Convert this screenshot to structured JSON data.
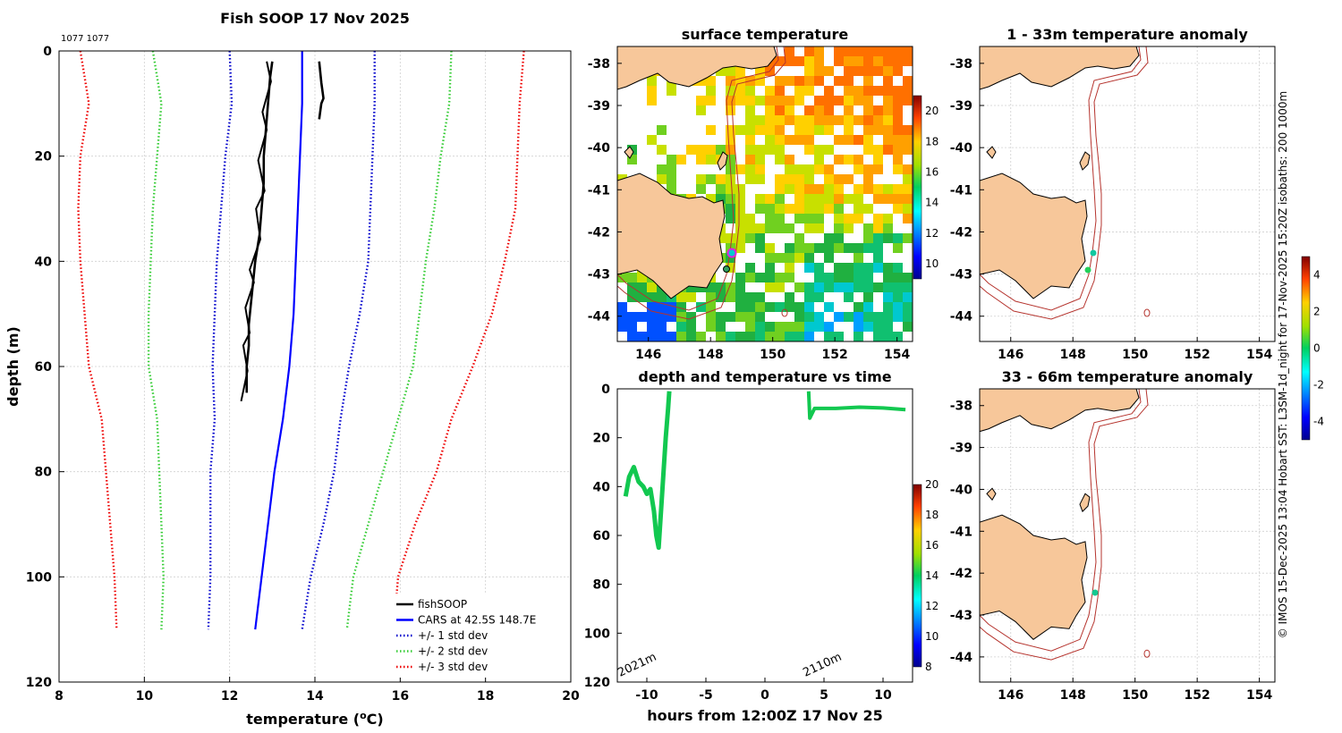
{
  "figure": {
    "side_text": "© IMOS 15-Dec-2025 13:04 Hobart SST: L3SM-1d_night for 17-Nov-2025 15:20Z isobaths: 200  1000m",
    "colors": {
      "fish": "#000000",
      "cars": "#0000ff",
      "std1": "#0000cc",
      "std2": "#33cc33",
      "std3": "#ee0000",
      "land": "#f7c79a",
      "isobath": "#b5332d",
      "track": "#12c850"
    }
  },
  "chart_data": [
    {
      "id": "profile",
      "type": "line",
      "title": "Fish SOOP 17 Nov 2025",
      "corner_note": "1077 1077",
      "xlabel": "temperature (°C)",
      "xlabel_main": "temperature (",
      "xlabel_sup": "o",
      "xlabel_tail": "C)",
      "ylabel": "depth (m)",
      "xlim": [
        8,
        20
      ],
      "ylim": [
        0,
        120
      ],
      "xticks": [
        "8",
        "10",
        "12",
        "14",
        "16",
        "18",
        "20"
      ],
      "yticks": [
        "0",
        "20",
        "40",
        "60",
        "80",
        "100",
        "120"
      ],
      "depth": [
        0,
        10,
        20,
        30,
        40,
        50,
        60,
        70,
        80,
        90,
        100,
        110
      ],
      "series": [
        {
          "name": "CARS at 42.5S 148.7E",
          "style": "solid",
          "color": "#0000ff",
          "values": [
            13.7,
            13.7,
            13.65,
            13.6,
            13.55,
            13.5,
            13.4,
            13.25,
            13.05,
            12.9,
            12.75,
            12.6
          ]
        },
        {
          "name": "+/- 1 std dev",
          "style": "dot",
          "color": "#0000cc",
          "values": [
            12.0,
            12.05,
            11.9,
            11.8,
            11.7,
            11.65,
            11.6,
            11.65,
            11.55,
            11.55,
            11.55,
            11.5
          ]
        },
        {
          "name": "+/- 1 std dev upper",
          "style": "dot",
          "color": "#0000cc",
          "legend": false,
          "values": [
            15.4,
            15.4,
            15.35,
            15.3,
            15.25,
            15.05,
            14.8,
            14.6,
            14.45,
            14.2,
            13.9,
            13.7
          ]
        },
        {
          "name": "+/- 2 std dev",
          "style": "dot",
          "color": "#33cc33",
          "values": [
            10.2,
            10.4,
            10.3,
            10.2,
            10.15,
            10.1,
            10.1,
            10.3,
            10.35,
            10.4,
            10.45,
            10.4
          ]
        },
        {
          "name": "+/- 2 std dev upper",
          "style": "dot",
          "color": "#33cc33",
          "legend": false,
          "values": [
            17.2,
            17.15,
            16.95,
            16.8,
            16.6,
            16.45,
            16.3,
            15.95,
            15.6,
            15.25,
            14.9,
            14.75
          ]
        },
        {
          "name": "+/- 3 std dev",
          "style": "dot",
          "color": "#ee0000",
          "values": [
            8.5,
            8.7,
            8.5,
            8.45,
            8.5,
            8.6,
            8.7,
            9.0,
            9.1,
            9.2,
            9.3,
            9.35
          ]
        },
        {
          "name": "+/- 3 std dev upper",
          "style": "dot",
          "color": "#ee0000",
          "legend": false,
          "values": [
            18.9,
            18.8,
            18.75,
            18.7,
            18.45,
            18.15,
            17.7,
            17.2,
            16.85,
            16.35,
            15.95,
            15.85
          ]
        }
      ],
      "fish": {
        "name": "fishSOOP",
        "color": "#000000",
        "depth": [
          2,
          5,
          10,
          15,
          20,
          25,
          30,
          35,
          40,
          44,
          48,
          52,
          56,
          60,
          65
        ],
        "values": [
          13.0,
          12.95,
          12.9,
          12.85,
          12.8,
          12.8,
          12.75,
          12.7,
          12.6,
          12.55,
          12.5,
          12.45,
          12.45,
          12.4,
          12.4
        ],
        "short_depth": [
          2,
          6,
          9,
          10,
          13
        ],
        "short_values": [
          14.1,
          14.15,
          14.2,
          14.15,
          14.1
        ]
      },
      "legend": [
        "fishSOOP",
        "CARS at 42.5S 148.7E",
        "+/- 1 std dev",
        "+/- 2 std dev",
        "+/- 3 std dev"
      ]
    },
    {
      "id": "sst_map",
      "type": "heatmap",
      "title": "surface temperature",
      "xticks": [
        "146",
        "148",
        "150",
        "152",
        "154"
      ],
      "yticks": [
        "-38",
        "-39",
        "-40",
        "-41",
        "-42",
        "-43",
        "-44"
      ],
      "xlim": [
        145,
        154.5
      ],
      "ylim": [
        -44.6,
        -37.6
      ],
      "colorbar": {
        "ticks": [
          "20",
          "18",
          "16",
          "14",
          "12",
          "10"
        ],
        "range": [
          9,
          21
        ]
      }
    },
    {
      "id": "time_series",
      "type": "scatter",
      "title": "depth and temperature vs time",
      "xlabel": "hours from 12:00Z 17 Nov 25",
      "xticks": [
        "-10",
        "-5",
        "0",
        "5",
        "10"
      ],
      "yticks": [
        "0",
        "20",
        "40",
        "60",
        "80",
        "100",
        "120"
      ],
      "xlim": [
        -12.5,
        12.5
      ],
      "ylim": [
        0,
        120
      ],
      "annotations": [
        "2021m",
        "2110m"
      ],
      "colorbar": {
        "ticks": [
          "20",
          "18",
          "16",
          "14",
          "12",
          "10",
          "8"
        ],
        "range": [
          8,
          20
        ]
      }
    },
    {
      "id": "anom_1_33",
      "type": "heatmap",
      "title": "1 - 33m temperature anomaly",
      "xticks": [
        "146",
        "148",
        "150",
        "152",
        "154"
      ],
      "yticks": [
        "-38",
        "-39",
        "-40",
        "-41",
        "-42",
        "-43",
        "-44"
      ],
      "xlim": [
        145,
        154.5
      ],
      "ylim": [
        -44.6,
        -37.6
      ],
      "colorbar": {
        "ticks": [
          "4",
          "2",
          "0",
          "-2",
          "-4"
        ],
        "range": [
          -5,
          5
        ]
      }
    },
    {
      "id": "anom_33_66",
      "type": "heatmap",
      "title": "33 - 66m temperature anomaly",
      "yticks": [
        "-38",
        "-39",
        "-40",
        "-41",
        "-42",
        "-43",
        "-44"
      ],
      "xticks": [
        "146",
        "148",
        "150",
        "152",
        "154"
      ],
      "xlim": [
        145,
        154.5
      ],
      "ylim": [
        -44.6,
        -37.6
      ]
    }
  ]
}
